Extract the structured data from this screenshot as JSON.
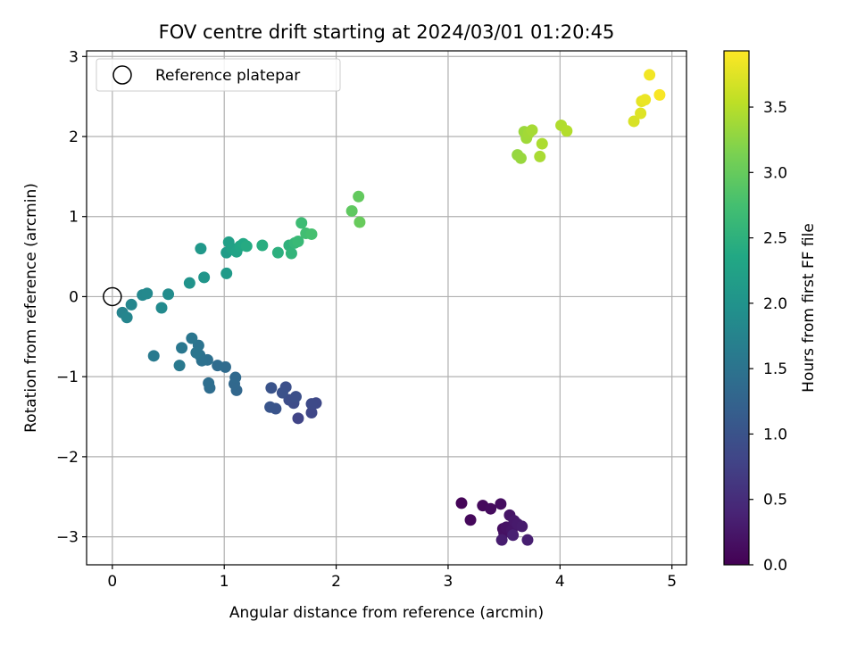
{
  "chart_data": {
    "type": "scatter",
    "title": "FOV centre drift starting at 2024/03/01 01:20:45",
    "xlabel": "Angular distance from reference (arcmin)",
    "ylabel": "Rotation from reference (arcmin)",
    "xlim": [
      -0.23,
      5.13
    ],
    "ylim": [
      -3.35,
      3.07
    ],
    "xticks": [
      0,
      1,
      2,
      3,
      4,
      5
    ],
    "xtick_labels": [
      "0",
      "1",
      "2",
      "3",
      "4",
      "5"
    ],
    "yticks": [
      -3,
      -2,
      -1,
      0,
      1,
      2,
      3
    ],
    "ytick_labels": [
      "−3",
      "−2",
      "−1",
      "0",
      "1",
      "2",
      "3"
    ],
    "grid": true,
    "legend": {
      "position": "top-left",
      "entries": [
        "Reference platepar"
      ]
    },
    "reference_point": {
      "x": 0,
      "y": 0
    },
    "colorbar": {
      "label": "Hours from first FF file",
      "colormap": "viridis",
      "range": [
        0,
        3.93
      ],
      "ticks": [
        0,
        0.5,
        1,
        1.5,
        2,
        2.5,
        3,
        3.5
      ],
      "tick_labels": [
        "0.0",
        "0.5",
        "1.0",
        "1.5",
        "2.0",
        "2.5",
        "3.0",
        "3.5"
      ]
    },
    "series": [
      {
        "points": [
          {
            "x": 3.12,
            "y": -2.58,
            "c": 0.05
          },
          {
            "x": 3.2,
            "y": -2.79,
            "c": 0.08
          },
          {
            "x": 3.31,
            "y": -2.61,
            "c": 0.1
          },
          {
            "x": 3.38,
            "y": -2.65,
            "c": 0.12
          },
          {
            "x": 3.47,
            "y": -2.59,
            "c": 0.14
          },
          {
            "x": 3.49,
            "y": -2.9,
            "c": 0.16
          },
          {
            "x": 3.5,
            "y": -2.95,
            "c": 0.18
          },
          {
            "x": 3.52,
            "y": -2.88,
            "c": 0.2
          },
          {
            "x": 3.55,
            "y": -2.73,
            "c": 0.22
          },
          {
            "x": 3.57,
            "y": -2.92,
            "c": 0.24
          },
          {
            "x": 3.59,
            "y": -2.8,
            "c": 0.26
          },
          {
            "x": 3.62,
            "y": -2.84,
            "c": 0.28
          },
          {
            "x": 3.66,
            "y": -2.87,
            "c": 0.3
          },
          {
            "x": 3.48,
            "y": -3.04,
            "c": 0.32
          },
          {
            "x": 3.71,
            "y": -3.04,
            "c": 0.34
          },
          {
            "x": 3.58,
            "y": -2.98,
            "c": 0.36
          },
          {
            "x": 1.66,
            "y": -1.52,
            "c": 0.8
          },
          {
            "x": 1.78,
            "y": -1.45,
            "c": 0.83
          },
          {
            "x": 1.82,
            "y": -1.33,
            "c": 0.86
          },
          {
            "x": 1.78,
            "y": -1.34,
            "c": 0.88
          },
          {
            "x": 1.62,
            "y": -1.33,
            "c": 0.9
          },
          {
            "x": 1.58,
            "y": -1.29,
            "c": 0.92
          },
          {
            "x": 1.64,
            "y": -1.25,
            "c": 0.94
          },
          {
            "x": 1.55,
            "y": -1.13,
            "c": 0.96
          },
          {
            "x": 1.52,
            "y": -1.2,
            "c": 0.98
          },
          {
            "x": 1.42,
            "y": -1.14,
            "c": 1.0
          },
          {
            "x": 1.46,
            "y": -1.4,
            "c": 1.02
          },
          {
            "x": 1.41,
            "y": -1.38,
            "c": 1.04
          },
          {
            "x": 1.11,
            "y": -1.17,
            "c": 1.3
          },
          {
            "x": 1.09,
            "y": -1.09,
            "c": 1.32
          },
          {
            "x": 1.1,
            "y": -1.01,
            "c": 1.34
          },
          {
            "x": 1.01,
            "y": -0.88,
            "c": 1.36
          },
          {
            "x": 0.94,
            "y": -0.86,
            "c": 1.38
          },
          {
            "x": 0.87,
            "y": -1.14,
            "c": 1.4
          },
          {
            "x": 0.86,
            "y": -1.08,
            "c": 1.42
          },
          {
            "x": 0.85,
            "y": -0.79,
            "c": 1.44
          },
          {
            "x": 0.8,
            "y": -0.8,
            "c": 1.46
          },
          {
            "x": 0.78,
            "y": -0.73,
            "c": 1.48
          },
          {
            "x": 0.77,
            "y": -0.61,
            "c": 1.5
          },
          {
            "x": 0.75,
            "y": -0.7,
            "c": 1.52
          },
          {
            "x": 0.71,
            "y": -0.52,
            "c": 1.54
          },
          {
            "x": 0.62,
            "y": -0.64,
            "c": 1.56
          },
          {
            "x": 0.6,
            "y": -0.86,
            "c": 1.58
          },
          {
            "x": 0.37,
            "y": -0.74,
            "c": 1.6
          },
          {
            "x": 0.09,
            "y": -0.2,
            "c": 1.75
          },
          {
            "x": 0.13,
            "y": -0.26,
            "c": 1.77
          },
          {
            "x": 0.17,
            "y": -0.1,
            "c": 1.79
          },
          {
            "x": 0.27,
            "y": 0.02,
            "c": 1.82
          },
          {
            "x": 0.31,
            "y": 0.04,
            "c": 1.84
          },
          {
            "x": 0.44,
            "y": -0.14,
            "c": 1.86
          },
          {
            "x": 0.5,
            "y": 0.03,
            "c": 1.88
          },
          {
            "x": 0.69,
            "y": 0.17,
            "c": 2.0
          },
          {
            "x": 0.82,
            "y": 0.24,
            "c": 2.04
          },
          {
            "x": 0.79,
            "y": 0.6,
            "c": 2.08
          },
          {
            "x": 1.02,
            "y": 0.29,
            "c": 2.12
          },
          {
            "x": 1.02,
            "y": 0.55,
            "c": 2.16
          },
          {
            "x": 1.04,
            "y": 0.68,
            "c": 2.2
          },
          {
            "x": 1.07,
            "y": 0.6,
            "c": 2.24
          },
          {
            "x": 1.11,
            "y": 0.56,
            "c": 2.28
          },
          {
            "x": 1.14,
            "y": 0.63,
            "c": 2.32
          },
          {
            "x": 1.17,
            "y": 0.66,
            "c": 2.36
          },
          {
            "x": 1.2,
            "y": 0.63,
            "c": 2.4
          },
          {
            "x": 1.34,
            "y": 0.64,
            "c": 2.44
          },
          {
            "x": 1.48,
            "y": 0.55,
            "c": 2.48
          },
          {
            "x": 1.58,
            "y": 0.64,
            "c": 2.52
          },
          {
            "x": 1.6,
            "y": 0.54,
            "c": 2.56
          },
          {
            "x": 1.63,
            "y": 0.67,
            "c": 2.6
          },
          {
            "x": 1.66,
            "y": 0.69,
            "c": 2.64
          },
          {
            "x": 1.69,
            "y": 0.92,
            "c": 2.68
          },
          {
            "x": 1.73,
            "y": 0.79,
            "c": 2.72
          },
          {
            "x": 1.78,
            "y": 0.78,
            "c": 2.76
          },
          {
            "x": 2.14,
            "y": 1.07,
            "c": 2.95
          },
          {
            "x": 2.2,
            "y": 1.25,
            "c": 2.98
          },
          {
            "x": 2.21,
            "y": 0.93,
            "c": 3.01
          },
          {
            "x": 3.62,
            "y": 1.77,
            "c": 3.3
          },
          {
            "x": 3.65,
            "y": 1.73,
            "c": 3.32
          },
          {
            "x": 3.68,
            "y": 2.06,
            "c": 3.34
          },
          {
            "x": 3.7,
            "y": 1.98,
            "c": 3.36
          },
          {
            "x": 3.72,
            "y": 2.04,
            "c": 3.38
          },
          {
            "x": 3.75,
            "y": 2.08,
            "c": 3.4
          },
          {
            "x": 3.82,
            "y": 1.75,
            "c": 3.42
          },
          {
            "x": 3.84,
            "y": 1.91,
            "c": 3.44
          },
          {
            "x": 4.01,
            "y": 2.14,
            "c": 3.46
          },
          {
            "x": 4.06,
            "y": 2.07,
            "c": 3.48
          },
          {
            "x": 4.66,
            "y": 2.19,
            "c": 3.7
          },
          {
            "x": 4.72,
            "y": 2.29,
            "c": 3.74
          },
          {
            "x": 4.73,
            "y": 2.44,
            "c": 3.78
          },
          {
            "x": 4.76,
            "y": 2.46,
            "c": 3.82
          },
          {
            "x": 4.8,
            "y": 2.77,
            "c": 3.86
          },
          {
            "x": 4.89,
            "y": 2.52,
            "c": 3.9
          }
        ]
      }
    ]
  }
}
